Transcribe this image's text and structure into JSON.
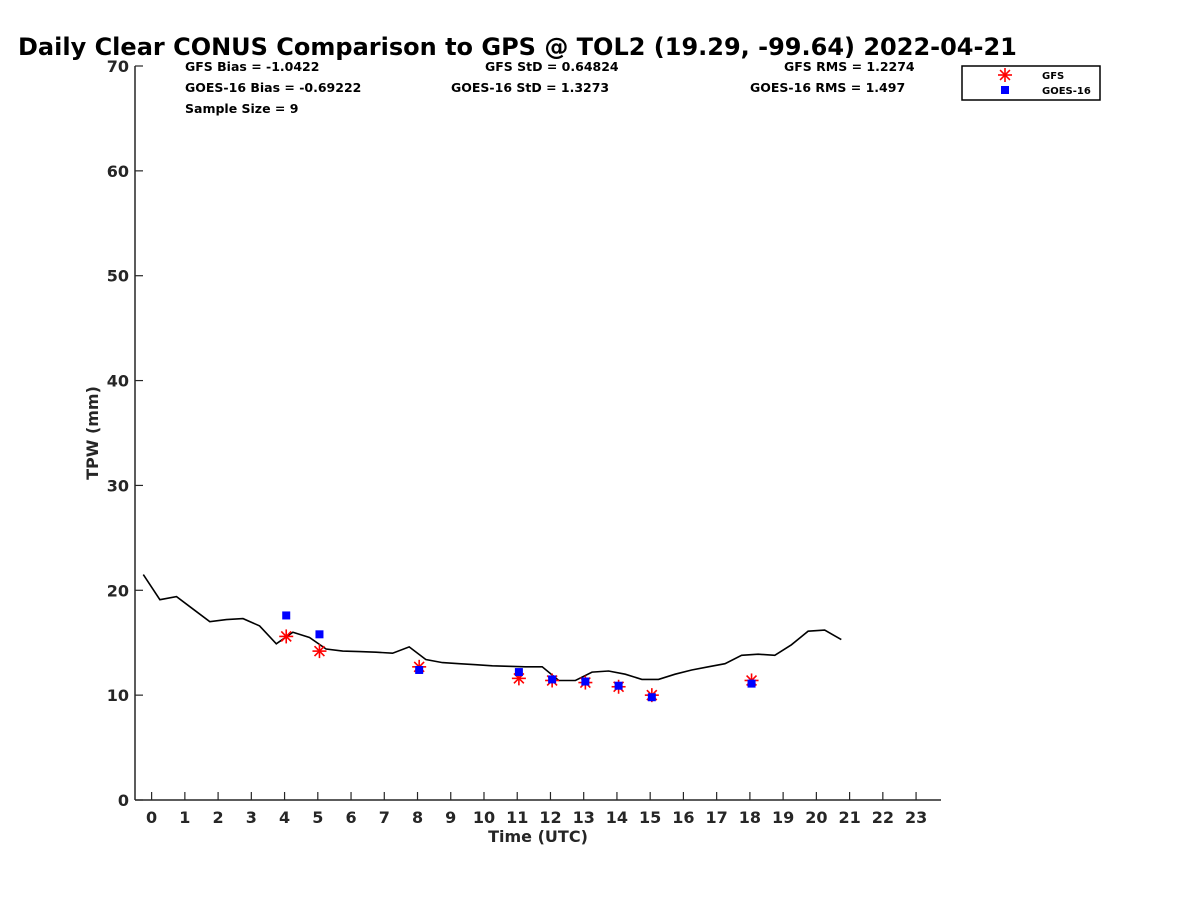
{
  "chart_data": {
    "type": "line",
    "title": "Daily Clear CONUS Comparison to GPS @ TOL2 (19.29, -99.64) 2022-04-21",
    "xlabel": "Time (UTC)",
    "ylabel": "TPW (mm)",
    "xlim": [
      -0.5,
      23.75
    ],
    "ylim": [
      0,
      70
    ],
    "xticks": [
      0,
      1,
      2,
      3,
      4,
      5,
      6,
      7,
      8,
      9,
      10,
      11,
      12,
      13,
      14,
      15,
      16,
      17,
      18,
      19,
      20,
      21,
      22,
      23
    ],
    "yticks": [
      0,
      10,
      20,
      30,
      40,
      50,
      60,
      70
    ],
    "grid": false,
    "legend_position": "top-right",
    "stats": {
      "gfs_bias": "GFS Bias = -1.0422",
      "gfs_std": "GFS StD = 0.64824",
      "gfs_rms": "GFS RMS = 1.2274",
      "goes_bias": "GOES-16 Bias = -0.69222",
      "goes_std": "GOES-16 StD = 1.3273",
      "goes_rms": "GOES-16 RMS = 1.497",
      "sample_size": "Sample Size = 9"
    },
    "series": [
      {
        "kind": "line",
        "color": "#000000",
        "x": [
          -0.25,
          0.25,
          0.75,
          1.25,
          1.75,
          2.25,
          2.75,
          3.25,
          3.75,
          4.25,
          4.75,
          5.25,
          5.75,
          6.25,
          6.75,
          7.25,
          7.75,
          8.25,
          8.75,
          9.25,
          9.75,
          10.25,
          10.75,
          11.25,
          11.75,
          12.25,
          12.75,
          13.25,
          13.75,
          14.25,
          14.75,
          15.25,
          15.75,
          16.25,
          16.75,
          17.25,
          17.75,
          18.25,
          18.75,
          19.25,
          19.75,
          20.25,
          20.75
        ],
        "values": [
          21.5,
          19.1,
          19.4,
          18.2,
          17.0,
          17.2,
          17.3,
          16.6,
          14.9,
          16.0,
          15.5,
          14.4,
          14.2,
          14.15,
          14.1,
          14.0,
          14.6,
          13.4,
          13.1,
          13.0,
          12.9,
          12.8,
          12.75,
          12.7,
          12.7,
          11.4,
          11.4,
          12.2,
          12.3,
          12.0,
          11.5,
          11.5,
          12.0,
          12.4,
          12.7,
          13.0,
          13.8,
          13.9,
          13.8,
          14.8,
          16.1,
          16.2,
          15.3
        ]
      },
      {
        "name": "GFS",
        "kind": "asterisk",
        "color": "#ff0000",
        "x": [
          4.05,
          5.05,
          8.05,
          11.05,
          12.05,
          13.05,
          14.05,
          15.05,
          18.05
        ],
        "values": [
          15.6,
          14.2,
          12.7,
          11.6,
          11.4,
          11.2,
          10.8,
          10.0,
          11.4
        ]
      },
      {
        "name": "GOES-16",
        "kind": "square",
        "color": "#0000ff",
        "x": [
          4.05,
          5.05,
          8.05,
          11.05,
          12.05,
          13.05,
          14.05,
          15.05,
          18.05
        ],
        "values": [
          17.6,
          15.8,
          12.4,
          12.2,
          11.5,
          11.3,
          10.9,
          9.8,
          11.1
        ]
      }
    ]
  }
}
